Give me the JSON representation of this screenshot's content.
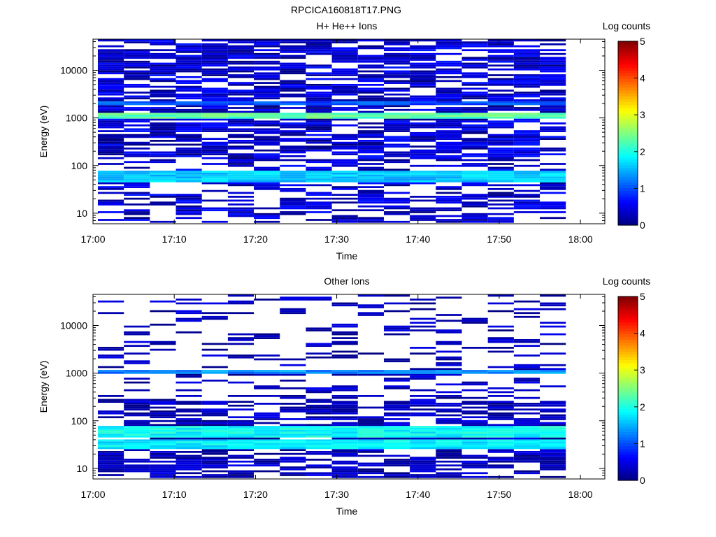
{
  "figure": {
    "title": "RPCICA160818T17.PNG"
  },
  "chart_data": [
    {
      "type": "heatmap",
      "title": "H+ He++ Ions",
      "xlabel": "Time",
      "ylabel": "Energy (eV)",
      "x_ticks": [
        "17:00",
        "17:10",
        "17:20",
        "17:30",
        "17:40",
        "17:50",
        "18:00"
      ],
      "y_scale": "log",
      "y_ticks": [
        "10",
        "100",
        "1000",
        "10000"
      ],
      "ylim": [
        6,
        45000
      ],
      "colorbar": {
        "label": "Log counts",
        "ticks": [
          "0",
          "1",
          "2",
          "3",
          "4",
          "5"
        ],
        "range": [
          0,
          5
        ],
        "colormap": "jet"
      },
      "bands": [
        {
          "energy_eV": [
            1000,
            1250
          ],
          "log_counts": 2.3
        },
        {
          "energy_eV": [
            45,
            80
          ],
          "log_counts": 1.6
        },
        {
          "energy_eV": [
            1800,
            2300
          ],
          "log_counts": 1.0
        }
      ]
    },
    {
      "type": "heatmap",
      "title": "Other Ions",
      "xlabel": "Time",
      "ylabel": "Energy (eV)",
      "x_ticks": [
        "17:00",
        "17:10",
        "17:20",
        "17:30",
        "17:40",
        "17:50",
        "18:00"
      ],
      "y_scale": "log",
      "y_ticks": [
        "10",
        "100",
        "1000",
        "10000"
      ],
      "ylim": [
        6,
        45000
      ],
      "colorbar": {
        "label": "Log counts",
        "ticks": [
          "0",
          "1",
          "2",
          "3",
          "4",
          "5"
        ],
        "range": [
          0,
          5
        ],
        "colormap": "jet"
      },
      "bands": [
        {
          "energy_eV": [
            1000,
            1200
          ],
          "log_counts": 1.3
        },
        {
          "energy_eV": [
            45,
            75
          ],
          "log_counts": 1.9
        },
        {
          "energy_eV": [
            25,
            40
          ],
          "log_counts": 1.8
        }
      ]
    }
  ]
}
